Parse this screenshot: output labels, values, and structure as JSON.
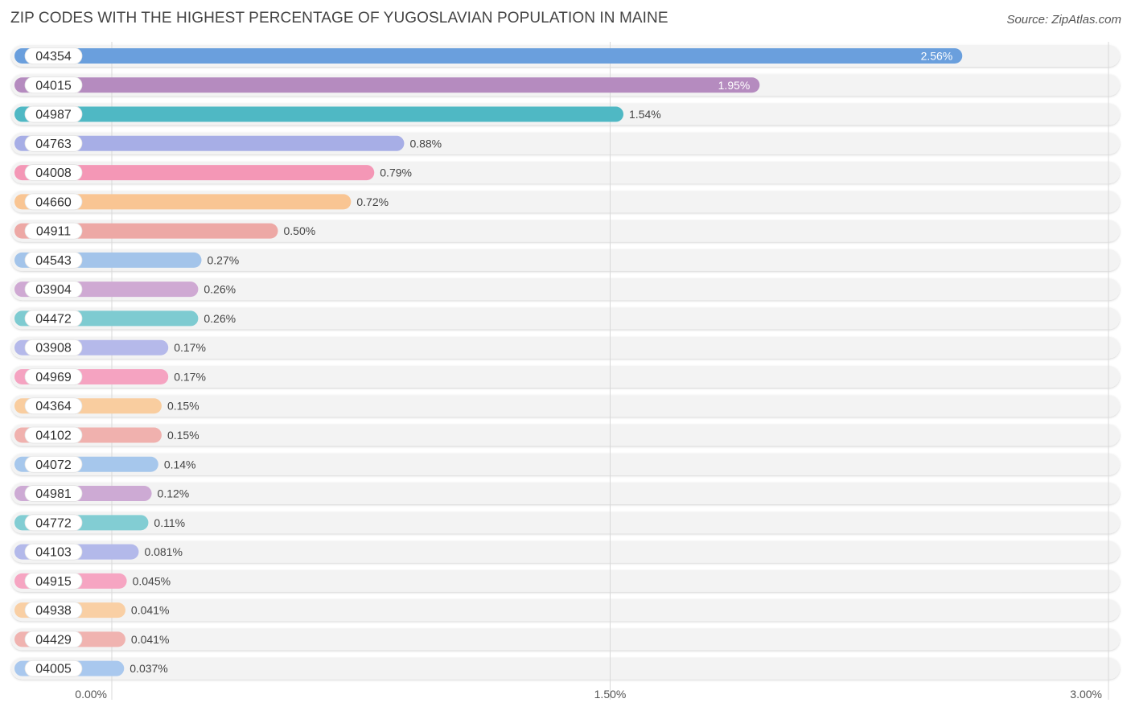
{
  "header": {
    "title": "ZIP CODES WITH THE HIGHEST PERCENTAGE OF YUGOSLAVIAN POPULATION IN MAINE",
    "source": "Source: ZipAtlas.com"
  },
  "chart_data": {
    "type": "bar",
    "orientation": "horizontal",
    "title": "ZIP CODES WITH THE HIGHEST PERCENTAGE OF YUGOSLAVIAN POPULATION IN MAINE",
    "xlim": [
      0,
      3.0
    ],
    "x_ticks": [
      {
        "value": 0,
        "label": "0.00%"
      },
      {
        "value": 1.5,
        "label": "1.50%"
      },
      {
        "value": 3.0,
        "label": "3.00%"
      }
    ],
    "grid": true,
    "categories": [
      "04354",
      "04015",
      "04987",
      "04763",
      "04008",
      "04660",
      "04911",
      "04543",
      "03904",
      "04472",
      "03908",
      "04969",
      "04364",
      "04102",
      "04072",
      "04981",
      "04772",
      "04103",
      "04915",
      "04938",
      "04429",
      "04005"
    ],
    "values": [
      2.56,
      1.95,
      1.54,
      0.88,
      0.79,
      0.72,
      0.5,
      0.27,
      0.26,
      0.26,
      0.17,
      0.17,
      0.15,
      0.15,
      0.14,
      0.12,
      0.11,
      0.081,
      0.045,
      0.041,
      0.041,
      0.037
    ],
    "value_labels": [
      "2.56%",
      "1.95%",
      "1.54%",
      "0.88%",
      "0.79%",
      "0.72%",
      "0.50%",
      "0.27%",
      "0.26%",
      "0.26%",
      "0.17%",
      "0.17%",
      "0.15%",
      "0.15%",
      "0.14%",
      "0.12%",
      "0.11%",
      "0.081%",
      "0.045%",
      "0.041%",
      "0.041%",
      "0.037%"
    ],
    "colors": [
      "#6a9fdd",
      "#b58bbf",
      "#4fb8c4",
      "#a7aee6",
      "#f497b6",
      "#f9c593",
      "#eda8a5",
      "#a3c4ea",
      "#cfa9d3",
      "#7ecbd1",
      "#b5b9ea",
      "#f5a3c1",
      "#f9cd9f",
      "#f0b1ae",
      "#a6c7ec",
      "#cdaad4",
      "#82cdd3",
      "#b3b9ea",
      "#f6a5c2",
      "#f9cfa4",
      "#f0b3b0",
      "#a9c8ee"
    ]
  }
}
